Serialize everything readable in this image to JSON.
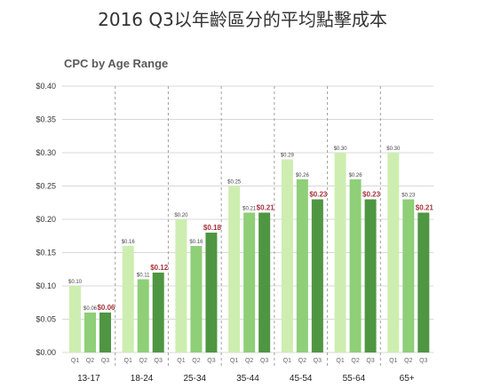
{
  "page_title": "2016 Q3以年齡區分的平均點擊成本",
  "chart_data": {
    "type": "bar",
    "title": "CPC by Age Range",
    "xlabel": "",
    "ylabel": "",
    "ylim": [
      0,
      0.4
    ],
    "yticks": [
      "$0.00",
      "$0.05",
      "$0.10",
      "$0.15",
      "$0.20",
      "$0.25",
      "$0.30",
      "$0.35",
      "$0.40"
    ],
    "grid": "horizontal",
    "groups": [
      {
        "label": "13-17",
        "bars": [
          {
            "q": "Q1",
            "value": 0.1,
            "label": "$0.10"
          },
          {
            "q": "Q2",
            "value": 0.06,
            "label": "$0.06"
          },
          {
            "q": "Q3",
            "value": 0.06,
            "label": "$0.06"
          }
        ]
      },
      {
        "label": "18-24",
        "bars": [
          {
            "q": "Q1",
            "value": 0.16,
            "label": "$0.16"
          },
          {
            "q": "Q2",
            "value": 0.11,
            "label": "$0.11"
          },
          {
            "q": "Q3",
            "value": 0.12,
            "label": "$0.12"
          }
        ]
      },
      {
        "label": "25-34",
        "bars": [
          {
            "q": "Q1",
            "value": 0.2,
            "label": "$0.20"
          },
          {
            "q": "Q2",
            "value": 0.16,
            "label": "$0.16"
          },
          {
            "q": "Q3",
            "value": 0.18,
            "label": "$0.18"
          }
        ]
      },
      {
        "label": "35-44",
        "bars": [
          {
            "q": "Q1",
            "value": 0.25,
            "label": "$0.25"
          },
          {
            "q": "Q2",
            "value": 0.21,
            "label": "$0.21"
          },
          {
            "q": "Q3",
            "value": 0.21,
            "label": "$0.21"
          }
        ]
      },
      {
        "label": "45-54",
        "bars": [
          {
            "q": "Q1",
            "value": 0.29,
            "label": "$0.29"
          },
          {
            "q": "Q2",
            "value": 0.26,
            "label": "$0.26"
          },
          {
            "q": "Q3",
            "value": 0.23,
            "label": "$0.23"
          }
        ]
      },
      {
        "label": "55-64",
        "bars": [
          {
            "q": "Q1",
            "value": 0.3,
            "label": "$0.30"
          },
          {
            "q": "Q2",
            "value": 0.26,
            "label": "$0.26"
          },
          {
            "q": "Q3",
            "value": 0.23,
            "label": "$0.23"
          }
        ]
      },
      {
        "label": "65+",
        "bars": [
          {
            "q": "Q1",
            "value": 0.3,
            "label": "$0.30"
          },
          {
            "q": "Q2",
            "value": 0.23,
            "label": "$0.23"
          },
          {
            "q": "Q3",
            "value": 0.21,
            "label": "$0.21"
          }
        ]
      }
    ],
    "colors": {
      "Q1": "#cdeeb0",
      "Q2": "#8ecf77",
      "Q3": "#4f9642",
      "q3_label": "#a5343b",
      "grid": "#d8d8d8",
      "separator": "#a0a0a0"
    }
  }
}
